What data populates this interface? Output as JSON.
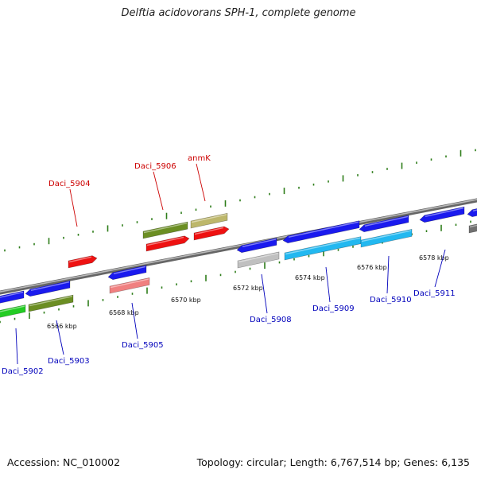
{
  "title": "Delftia acidovorans SPH-1, complete genome",
  "footer": {
    "accession": "Accession: NC_010002",
    "summary": "Topology: circular; Length: 6,767,514 bp; Genes: 6,135"
  },
  "colors": {
    "backbone": "#8a8a8a",
    "tick": "#2e7d1a",
    "label_forward": "#cc0000",
    "label_reverse": "#0000bb",
    "leader": "#0000bb",
    "leader_forward": "#cc0000"
  },
  "scale": {
    "unit": "kbp",
    "ticks": [
      {
        "label": "6566 kbp"
      },
      {
        "label": "6568 kbp"
      },
      {
        "label": "6570 kbp"
      },
      {
        "label": "6572 kbp"
      },
      {
        "label": "6574 kbp"
      },
      {
        "label": "6576 kbp"
      },
      {
        "label": "6578 kbp"
      }
    ]
  },
  "genes": [
    {
      "name": "Daci_5904",
      "strand": "forward",
      "labeled": true
    },
    {
      "name": "Daci_5906",
      "strand": "forward",
      "labeled": true
    },
    {
      "name": "anmK",
      "strand": "forward",
      "labeled": true
    },
    {
      "name": "Daci_5902",
      "strand": "reverse",
      "labeled": true
    },
    {
      "name": "Daci_5903",
      "strand": "reverse",
      "labeled": true
    },
    {
      "name": "Daci_5905",
      "strand": "reverse",
      "labeled": true
    },
    {
      "name": "Daci_5908",
      "strand": "reverse",
      "labeled": true
    },
    {
      "name": "Daci_5909",
      "strand": "reverse",
      "labeled": true
    },
    {
      "name": "Daci_5910",
      "strand": "reverse",
      "labeled": true
    },
    {
      "name": "Daci_5911",
      "strand": "reverse",
      "labeled": true
    }
  ],
  "features": [
    {
      "name": "Daci_5904-cds",
      "strand": "forward",
      "color": "#ee1111"
    },
    {
      "name": "Daci_5906-gene",
      "strand": "forward",
      "color": "#6b8e23"
    },
    {
      "name": "Daci_5906-cds",
      "strand": "forward",
      "color": "#ee1111"
    },
    {
      "name": "anmK-gene",
      "strand": "forward",
      "color": "#bdb76b"
    },
    {
      "name": "anmK-cds",
      "strand": "forward",
      "color": "#ee1111"
    },
    {
      "name": "Daci_5902-gene",
      "strand": "reverse",
      "color": "#1a1aee"
    },
    {
      "name": "Daci_5902-cds",
      "strand": "reverse",
      "color": "#22cc22"
    },
    {
      "name": "Daci_5903-gene",
      "strand": "reverse",
      "color": "#1a1aee"
    },
    {
      "name": "Daci_5903-cds",
      "strand": "reverse",
      "color": "#6b8e23"
    },
    {
      "name": "Daci_5905-gene",
      "strand": "reverse",
      "color": "#1a1aee"
    },
    {
      "name": "Daci_5905-cds",
      "strand": "reverse",
      "color": "#f08080"
    },
    {
      "name": "Daci_5908-gene",
      "strand": "reverse",
      "color": "#1a1aee"
    },
    {
      "name": "Daci_5908-cds",
      "strand": "reverse",
      "color": "#c0c0c0"
    },
    {
      "name": "Daci_5909-gene",
      "strand": "reverse",
      "color": "#1a1aee"
    },
    {
      "name": "Daci_5909-cds",
      "strand": "reverse",
      "color": "#22b8f0"
    },
    {
      "name": "Daci_5910-gene",
      "strand": "reverse",
      "color": "#1a1aee"
    },
    {
      "name": "Daci_5910-cds",
      "strand": "reverse",
      "color": "#22b8f0"
    },
    {
      "name": "Daci_5911-gene",
      "strand": "reverse",
      "color": "#1a1aee"
    },
    {
      "name": "edge-gene",
      "strand": "reverse",
      "color": "#1a1aee"
    },
    {
      "name": "edge-cds",
      "strand": "reverse",
      "color": "#707070"
    }
  ]
}
